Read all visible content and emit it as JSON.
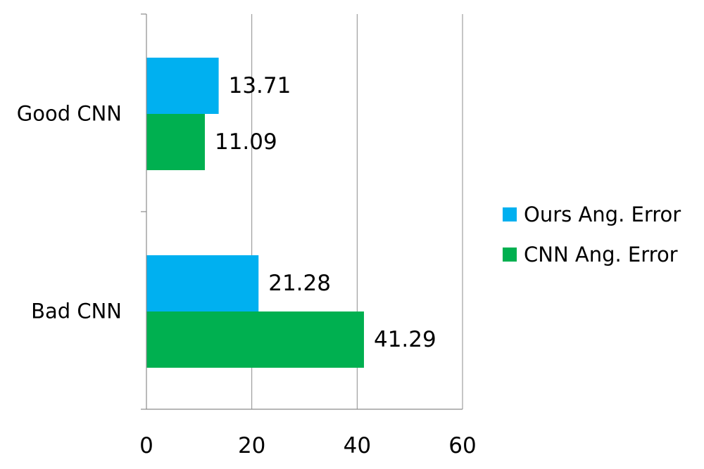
{
  "chart_data": {
    "type": "bar",
    "orientation": "horizontal",
    "title": "",
    "xlabel": "",
    "ylabel": "",
    "categories": [
      "Good CNN",
      "Bad CNN"
    ],
    "series": [
      {
        "name": "Ours Ang. Error",
        "values": [
          13.71,
          21.28
        ],
        "color": "#00b0f0"
      },
      {
        "name": "CNN Ang. Error",
        "values": [
          11.09,
          41.29
        ],
        "color": "#00b050"
      }
    ],
    "data_labels": [
      [
        "13.71",
        "21.28"
      ],
      [
        "11.09",
        "41.29"
      ]
    ],
    "xlim": [
      0,
      60
    ],
    "xticks": [
      0,
      20,
      40,
      60
    ],
    "xtick_labels": [
      "0",
      "20",
      "40",
      "60"
    ],
    "grid": "vertical",
    "legend_position": "right"
  }
}
